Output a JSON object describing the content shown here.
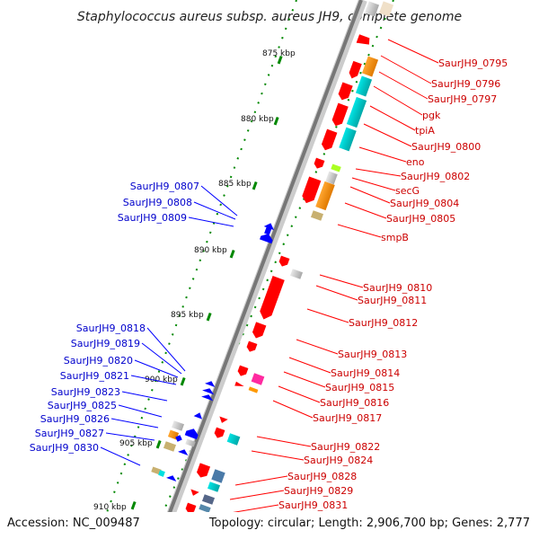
{
  "title": "Staphylococcus aureus subsp. aureus JH9, complete genome",
  "footer": {
    "accession": "Accession: NC_009487",
    "summary": "Topology: circular; Length: 2,906,700 bp; Genes: 2,777"
  },
  "colors": {
    "forward_label": "#cc0000",
    "reverse_label": "#0000cc",
    "forward_gene": "#ff0000",
    "reverse_gene": "#0000ff",
    "tick": "#008800",
    "backbone": "#777777"
  },
  "scale_ticks": [
    "875 kbp",
    "880 kbp",
    "885 kbp",
    "890 kbp",
    "895 kbp",
    "900 kbp",
    "905 kbp",
    "910 kbp"
  ],
  "forward_labels": [
    "SaurJH9_0795",
    "SaurJH9_0796",
    "SaurJH9_0797",
    "pgk",
    "tpiA",
    "SaurJH9_0800",
    "eno",
    "SaurJH9_0802",
    "secG",
    "SaurJH9_0804",
    "SaurJH9_0805",
    "smpB",
    "SaurJH9_0810",
    "SaurJH9_0811",
    "SaurJH9_0812",
    "SaurJH9_0813",
    "SaurJH9_0814",
    "SaurJH9_0815",
    "SaurJH9_0816",
    "SaurJH9_0817",
    "SaurJH9_0822",
    "SaurJH9_0824",
    "SaurJH9_0828",
    "SaurJH9_0829",
    "SaurJH9_0831"
  ],
  "reverse_labels": [
    "SaurJH9_0807",
    "SaurJH9_0808",
    "SaurJH9_0809",
    "SaurJH9_0818",
    "SaurJH9_0819",
    "SaurJH9_0820",
    "SaurJH9_0821",
    "SaurJH9_0823",
    "SaurJH9_0825",
    "SaurJH9_0826",
    "SaurJH9_0827",
    "SaurJH9_0830"
  ]
}
